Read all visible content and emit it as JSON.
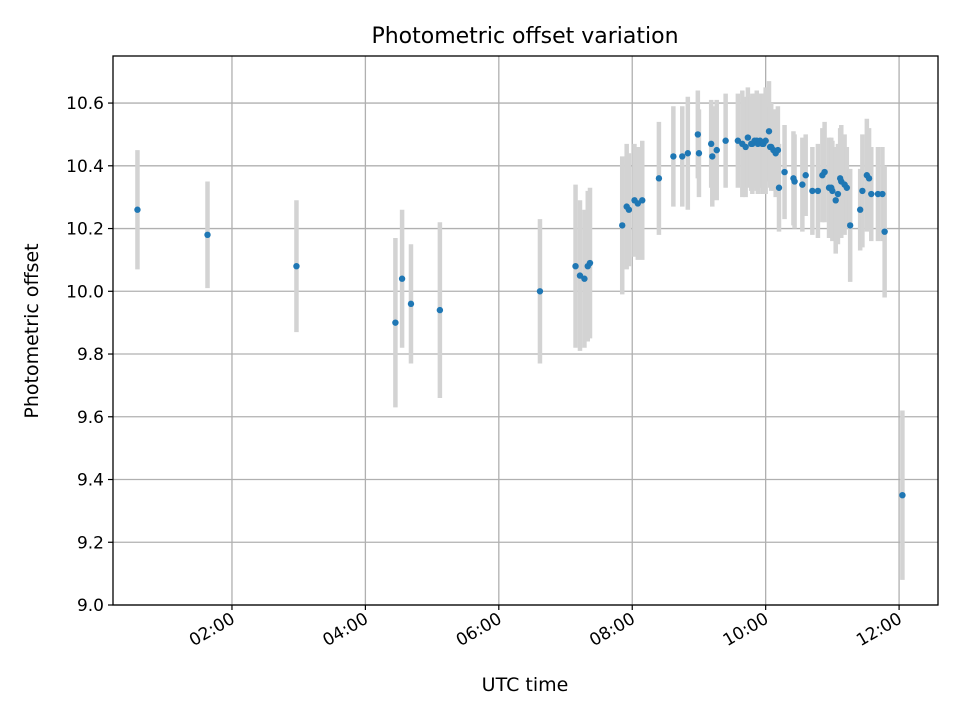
{
  "chart_data": {
    "type": "scatter",
    "title": "Photometric offset variation",
    "xlabel": "UTC time",
    "ylabel": "Photometric offset",
    "grid": true,
    "legend": "none",
    "x_range": [
      "00:13",
      "12:35"
    ],
    "ylim": [
      9.0,
      10.75
    ],
    "x_ticks": [
      "02:00",
      "04:00",
      "06:00",
      "08:00",
      "10:00",
      "12:00"
    ],
    "y_ticks": [
      "9.0",
      "9.2",
      "9.4",
      "9.6",
      "9.8",
      "10.0",
      "10.2",
      "10.4",
      "10.6"
    ],
    "colors": {
      "marker": "#1f77b4",
      "errorbar": "#d3d3d3"
    },
    "series": [
      {
        "x": [
          "00:35",
          "01:38",
          "02:58",
          "04:27",
          "04:33",
          "04:41",
          "05:07",
          "06:37",
          "07:09",
          "07:13",
          "07:17",
          "07:20",
          "07:22",
          "07:51",
          "07:55",
          "07:57",
          "08:02",
          "08:05",
          "08:09",
          "08:24",
          "08:37",
          "08:45",
          "08:50",
          "08:59",
          "09:00",
          "09:11",
          "09:12",
          "09:16",
          "09:24",
          "09:35",
          "09:39",
          "09:42",
          "09:44",
          "09:47",
          "09:48",
          "09:50",
          "09:52",
          "09:53",
          "09:55",
          "09:57",
          "09:58",
          "10:00",
          "10:03",
          "10:04",
          "10:05",
          "10:07",
          "10:09",
          "10:11",
          "10:12",
          "10:17",
          "10:25",
          "10:26",
          "10:33",
          "10:36",
          "10:42",
          "10:47",
          "10:51",
          "10:53",
          "10:57",
          "10:59",
          "11:00",
          "11:03",
          "11:05",
          "11:07",
          "11:08",
          "11:11",
          "11:13",
          "11:16",
          "11:25",
          "11:27",
          "11:31",
          "11:33",
          "11:35",
          "11:41",
          "11:45",
          "11:47",
          "12:03"
        ],
        "y": [
          10.26,
          10.18,
          10.08,
          9.9,
          10.04,
          9.96,
          9.94,
          10.0,
          10.08,
          10.05,
          10.04,
          10.08,
          10.09,
          10.21,
          10.27,
          10.26,
          10.29,
          10.28,
          10.29,
          10.36,
          10.43,
          10.43,
          10.44,
          10.5,
          10.44,
          10.47,
          10.43,
          10.45,
          10.48,
          10.48,
          10.47,
          10.46,
          10.49,
          10.47,
          10.47,
          10.48,
          10.48,
          10.47,
          10.48,
          10.47,
          10.47,
          10.48,
          10.51,
          10.46,
          10.46,
          10.45,
          10.44,
          10.45,
          10.33,
          10.38,
          10.36,
          10.35,
          10.34,
          10.37,
          10.32,
          10.32,
          10.37,
          10.38,
          10.33,
          10.33,
          10.32,
          10.29,
          10.31,
          10.36,
          10.35,
          10.34,
          10.33,
          10.21,
          10.26,
          10.32,
          10.37,
          10.36,
          10.31,
          10.31,
          10.31,
          10.19,
          9.35
        ],
        "yerr": [
          0.19,
          0.17,
          0.21,
          0.27,
          0.22,
          0.19,
          0.28,
          0.23,
          0.26,
          0.24,
          0.22,
          0.24,
          0.24,
          0.22,
          0.2,
          0.18,
          0.18,
          0.18,
          0.19,
          0.18,
          0.16,
          0.16,
          0.18,
          0.14,
          0.14,
          0.14,
          0.16,
          0.16,
          0.15,
          0.15,
          0.17,
          0.16,
          0.16,
          0.15,
          0.16,
          0.15,
          0.16,
          0.16,
          0.15,
          0.16,
          0.16,
          0.17,
          0.16,
          0.13,
          0.14,
          0.13,
          0.14,
          0.14,
          0.14,
          0.15,
          0.15,
          0.15,
          0.15,
          0.13,
          0.14,
          0.15,
          0.15,
          0.16,
          0.16,
          0.16,
          0.16,
          0.17,
          0.16,
          0.16,
          0.18,
          0.16,
          0.13,
          0.18,
          0.13,
          0.18,
          0.18,
          0.16,
          0.15,
          0.15,
          0.15,
          0.21,
          0.27
        ]
      }
    ]
  }
}
